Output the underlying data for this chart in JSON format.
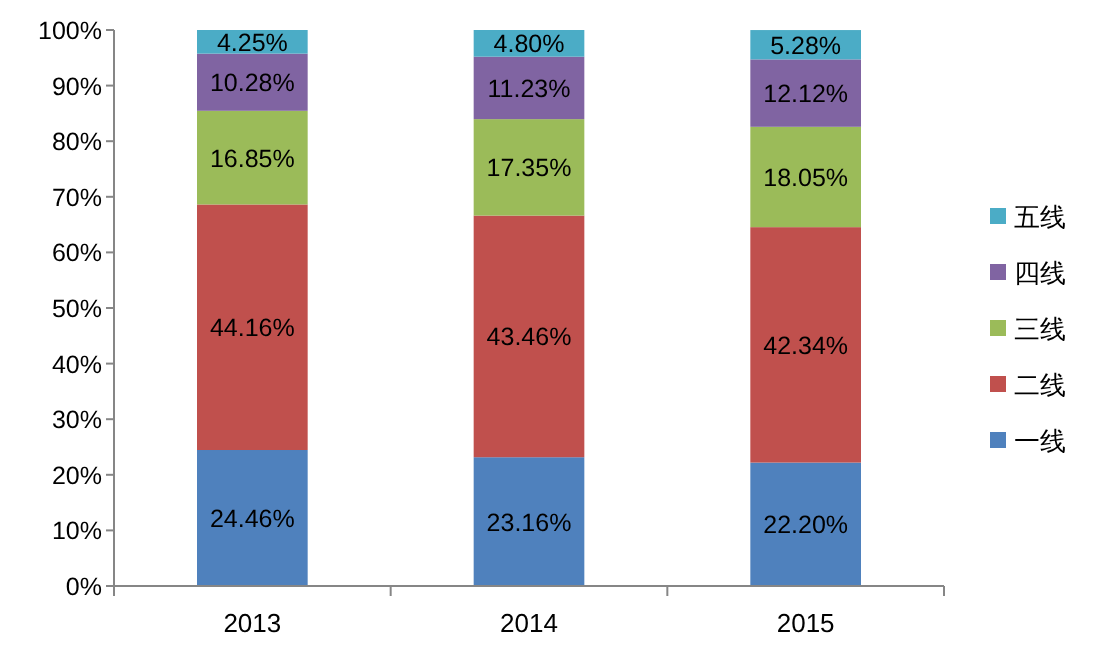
{
  "chart_data": {
    "type": "bar",
    "stacked": true,
    "categories": [
      "2013",
      "2014",
      "2015"
    ],
    "series": [
      {
        "name": "一线",
        "color": "#4f81bd",
        "values": [
          24.46,
          23.16,
          22.2
        ],
        "value_labels": [
          "24.46%",
          "23.16%",
          "22.20%"
        ]
      },
      {
        "name": "二线",
        "color": "#c0504d",
        "values": [
          44.16,
          43.46,
          42.34
        ],
        "value_labels": [
          "44.16%",
          "43.46%",
          "42.34%"
        ]
      },
      {
        "name": "三线",
        "color": "#9bbb59",
        "values": [
          16.85,
          17.35,
          18.05
        ],
        "value_labels": [
          "16.85%",
          "17.35%",
          "18.05%"
        ]
      },
      {
        "name": "四线",
        "color": "#8064a2",
        "values": [
          10.28,
          11.23,
          12.12
        ],
        "value_labels": [
          "10.28%",
          "11.23%",
          "12.12%"
        ]
      },
      {
        "name": "五线",
        "color": "#4bacc6",
        "values": [
          4.25,
          4.8,
          5.28
        ],
        "value_labels": [
          "4.25%",
          "4.80%",
          "5.28%"
        ]
      }
    ],
    "ylim": [
      0,
      100
    ],
    "yticks": [
      {
        "value": 0,
        "label": "0%"
      },
      {
        "value": 10,
        "label": "10%"
      },
      {
        "value": 20,
        "label": "20%"
      },
      {
        "value": 30,
        "label": "30%"
      },
      {
        "value": 40,
        "label": "40%"
      },
      {
        "value": 50,
        "label": "50%"
      },
      {
        "value": 60,
        "label": "60%"
      },
      {
        "value": 70,
        "label": "70%"
      },
      {
        "value": 80,
        "label": "80%"
      },
      {
        "value": 90,
        "label": "90%"
      },
      {
        "value": 100,
        "label": "100%"
      }
    ],
    "grid": false,
    "legend": "right"
  }
}
